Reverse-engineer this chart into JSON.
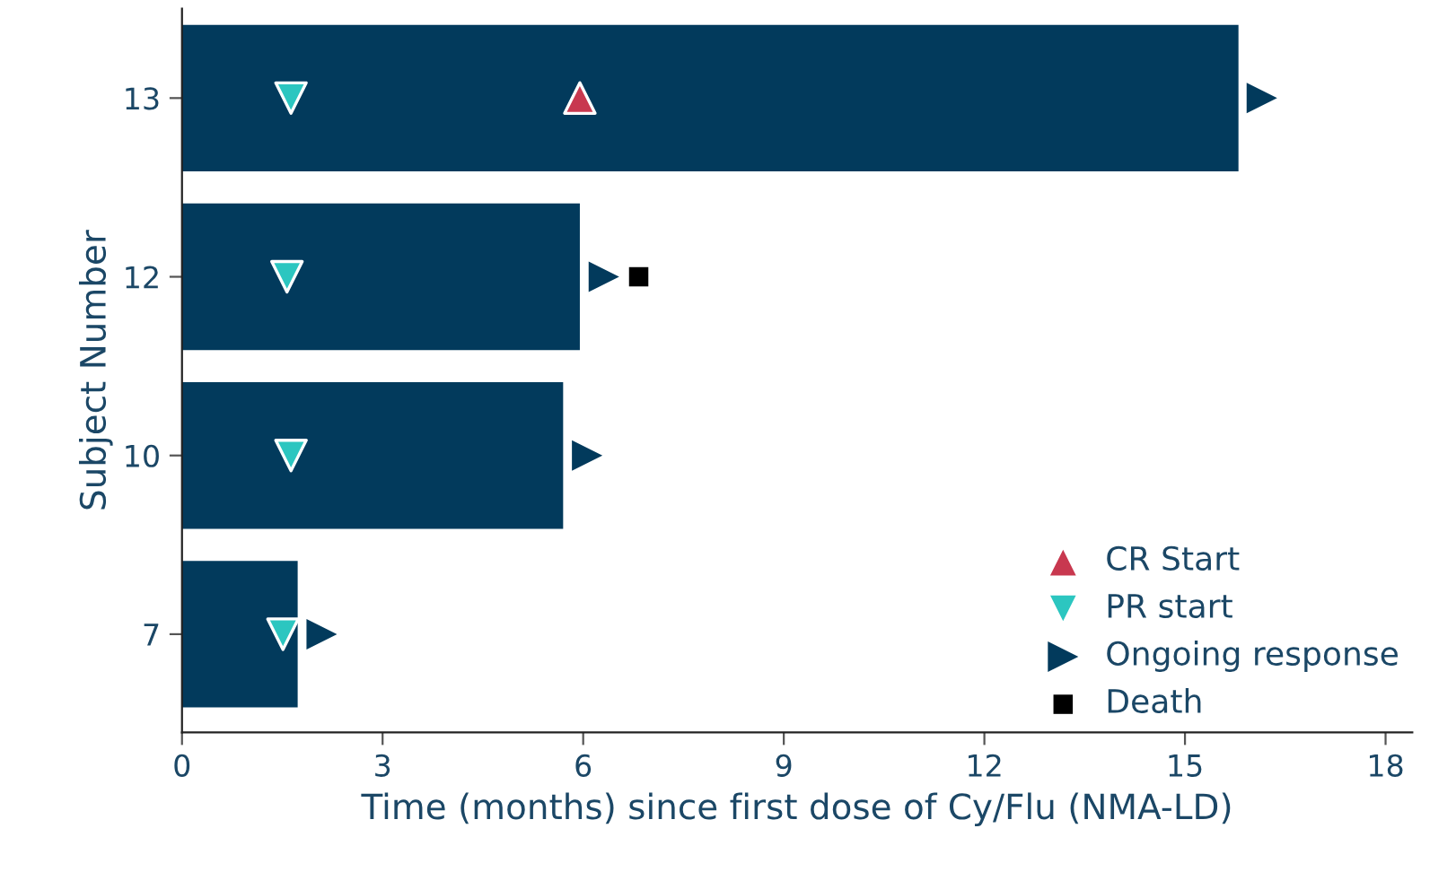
{
  "chart_data": {
    "type": "bar",
    "orientation": "horizontal",
    "xlabel": "Time (months) since first dose of Cy/Flu (NMA-LD)",
    "ylabel": "Subject Number",
    "categories": [
      "13",
      "12",
      "10",
      "7"
    ],
    "xlim": [
      0,
      18.4
    ],
    "xticks": [
      0,
      3,
      6,
      9,
      12,
      15,
      18
    ],
    "grid": false,
    "legend": "bottom right",
    "series": [
      {
        "color": "#023a5c",
        "values": [
          15.8,
          5.95,
          5.7,
          1.73
        ]
      },
      {
        "type": "scatter",
        "name": "CR Start",
        "color": "#c8384f",
        "marker": "triangle",
        "values": [
          5.95,
          null,
          null,
          null
        ]
      },
      {
        "type": "scatter",
        "name": "PR start",
        "color": "#2cc6c0",
        "marker": "triangle-down",
        "values": [
          1.63,
          1.57,
          1.63,
          1.51
        ]
      },
      {
        "type": "scatter",
        "name": "Ongoing response",
        "color": "#023a5c",
        "marker": "triangle-right",
        "values": [
          16.15,
          6.31,
          6.06,
          2.09
        ]
      },
      {
        "type": "scatter",
        "name": "Death",
        "color": "#000000",
        "marker": "square",
        "values": [
          null,
          6.83,
          null,
          null
        ]
      }
    ]
  }
}
